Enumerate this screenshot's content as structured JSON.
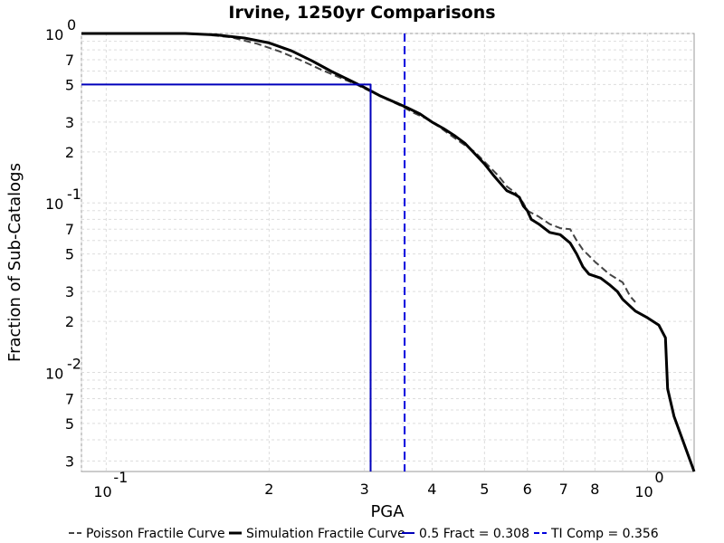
{
  "chart_data": {
    "type": "line",
    "title": "Irvine, 1250yr Comparisons",
    "xlabel": "PGA",
    "ylabel": "Fraction of Sub-Catalogs",
    "x_scale": "log",
    "y_scale": "log",
    "xlim": [
      0.09,
      1.22
    ],
    "ylim": [
      0.0026,
      1.0
    ],
    "grid": true,
    "legend_position": "bottom",
    "x_ticks": [
      {
        "value": 0.1,
        "base": "10",
        "exp": "-1"
      },
      {
        "value": 0.2,
        "label": "2"
      },
      {
        "value": 0.3,
        "label": "3"
      },
      {
        "value": 0.4,
        "label": "4"
      },
      {
        "value": 0.5,
        "label": "5"
      },
      {
        "value": 0.6,
        "label": "6"
      },
      {
        "value": 0.7,
        "label": "7"
      },
      {
        "value": 0.8,
        "label": "8"
      },
      {
        "value": 1.0,
        "base": "10",
        "exp": "0"
      }
    ],
    "y_ticks": [
      {
        "value": 1.0,
        "base": "10",
        "exp": "0"
      },
      {
        "value": 0.7,
        "label": "7"
      },
      {
        "value": 0.5,
        "label": "5"
      },
      {
        "value": 0.3,
        "label": "3"
      },
      {
        "value": 0.2,
        "label": "2"
      },
      {
        "value": 0.1,
        "base": "10",
        "exp": "-1"
      },
      {
        "value": 0.07,
        "label": "7"
      },
      {
        "value": 0.05,
        "label": "5"
      },
      {
        "value": 0.03,
        "label": "3"
      },
      {
        "value": 0.02,
        "label": "2"
      },
      {
        "value": 0.01,
        "base": "10",
        "exp": "-2"
      },
      {
        "value": 0.007,
        "label": "7"
      },
      {
        "value": 0.005,
        "label": "5"
      },
      {
        "value": 0.003,
        "label": "3"
      }
    ],
    "series": [
      {
        "name": "Poisson Fractile Curve",
        "color": "#444444",
        "style": "dashed",
        "points": [
          [
            0.09,
            1.0
          ],
          [
            0.13,
            1.0
          ],
          [
            0.15,
            0.99
          ],
          [
            0.17,
            0.95
          ],
          [
            0.19,
            0.87
          ],
          [
            0.21,
            0.78
          ],
          [
            0.23,
            0.69
          ],
          [
            0.25,
            0.61
          ],
          [
            0.27,
            0.55
          ],
          [
            0.29,
            0.5
          ],
          [
            0.31,
            0.45
          ],
          [
            0.33,
            0.41
          ],
          [
            0.35,
            0.375
          ],
          [
            0.37,
            0.34
          ],
          [
            0.39,
            0.315
          ],
          [
            0.41,
            0.285
          ],
          [
            0.43,
            0.255
          ],
          [
            0.45,
            0.23
          ],
          [
            0.48,
            0.2
          ],
          [
            0.5,
            0.175
          ],
          [
            0.53,
            0.145
          ],
          [
            0.55,
            0.125
          ],
          [
            0.57,
            0.115
          ],
          [
            0.59,
            0.1
          ],
          [
            0.6,
            0.09
          ],
          [
            0.63,
            0.083
          ],
          [
            0.66,
            0.075
          ],
          [
            0.69,
            0.071
          ],
          [
            0.72,
            0.07
          ],
          [
            0.74,
            0.06
          ],
          [
            0.76,
            0.053
          ],
          [
            0.8,
            0.045
          ],
          [
            0.85,
            0.038
          ],
          [
            0.9,
            0.034
          ],
          [
            0.93,
            0.028
          ],
          [
            0.95,
            0.026
          ]
        ]
      },
      {
        "name": "Simulation Fractile Curve",
        "color": "#000000",
        "style": "solid",
        "points": [
          [
            0.09,
            1.0
          ],
          [
            0.14,
            1.0
          ],
          [
            0.16,
            0.98
          ],
          [
            0.18,
            0.94
          ],
          [
            0.2,
            0.88
          ],
          [
            0.22,
            0.79
          ],
          [
            0.24,
            0.69
          ],
          [
            0.26,
            0.6
          ],
          [
            0.28,
            0.535
          ],
          [
            0.3,
            0.48
          ],
          [
            0.32,
            0.43
          ],
          [
            0.34,
            0.395
          ],
          [
            0.36,
            0.365
          ],
          [
            0.38,
            0.335
          ],
          [
            0.4,
            0.3
          ],
          [
            0.42,
            0.275
          ],
          [
            0.44,
            0.25
          ],
          [
            0.46,
            0.225
          ],
          [
            0.48,
            0.195
          ],
          [
            0.5,
            0.17
          ],
          [
            0.52,
            0.145
          ],
          [
            0.55,
            0.118
          ],
          [
            0.57,
            0.112
          ],
          [
            0.58,
            0.108
          ],
          [
            0.59,
            0.096
          ],
          [
            0.6,
            0.09
          ],
          [
            0.61,
            0.08
          ],
          [
            0.63,
            0.075
          ],
          [
            0.66,
            0.067
          ],
          [
            0.69,
            0.065
          ],
          [
            0.72,
            0.058
          ],
          [
            0.74,
            0.05
          ],
          [
            0.76,
            0.042
          ],
          [
            0.78,
            0.038
          ],
          [
            0.82,
            0.036
          ],
          [
            0.85,
            0.033
          ],
          [
            0.88,
            0.03
          ],
          [
            0.9,
            0.027
          ],
          [
            0.95,
            0.023
          ],
          [
            1.0,
            0.021
          ],
          [
            1.05,
            0.019
          ],
          [
            1.08,
            0.016
          ],
          [
            1.09,
            0.008
          ],
          [
            1.12,
            0.0055
          ],
          [
            1.22,
            0.0026
          ]
        ]
      },
      {
        "name": "0.5 Fract = 0.308",
        "color": "#0000bb",
        "style": "solid",
        "points": [
          [
            0.09,
            0.5
          ],
          [
            0.308,
            0.5
          ],
          [
            0.308,
            0.0026
          ]
        ]
      },
      {
        "name": "TI Comp = 0.356",
        "color": "#0000dd",
        "style": "dashed",
        "points": [
          [
            0.356,
            1.0
          ],
          [
            0.356,
            0.0026
          ]
        ]
      }
    ]
  }
}
